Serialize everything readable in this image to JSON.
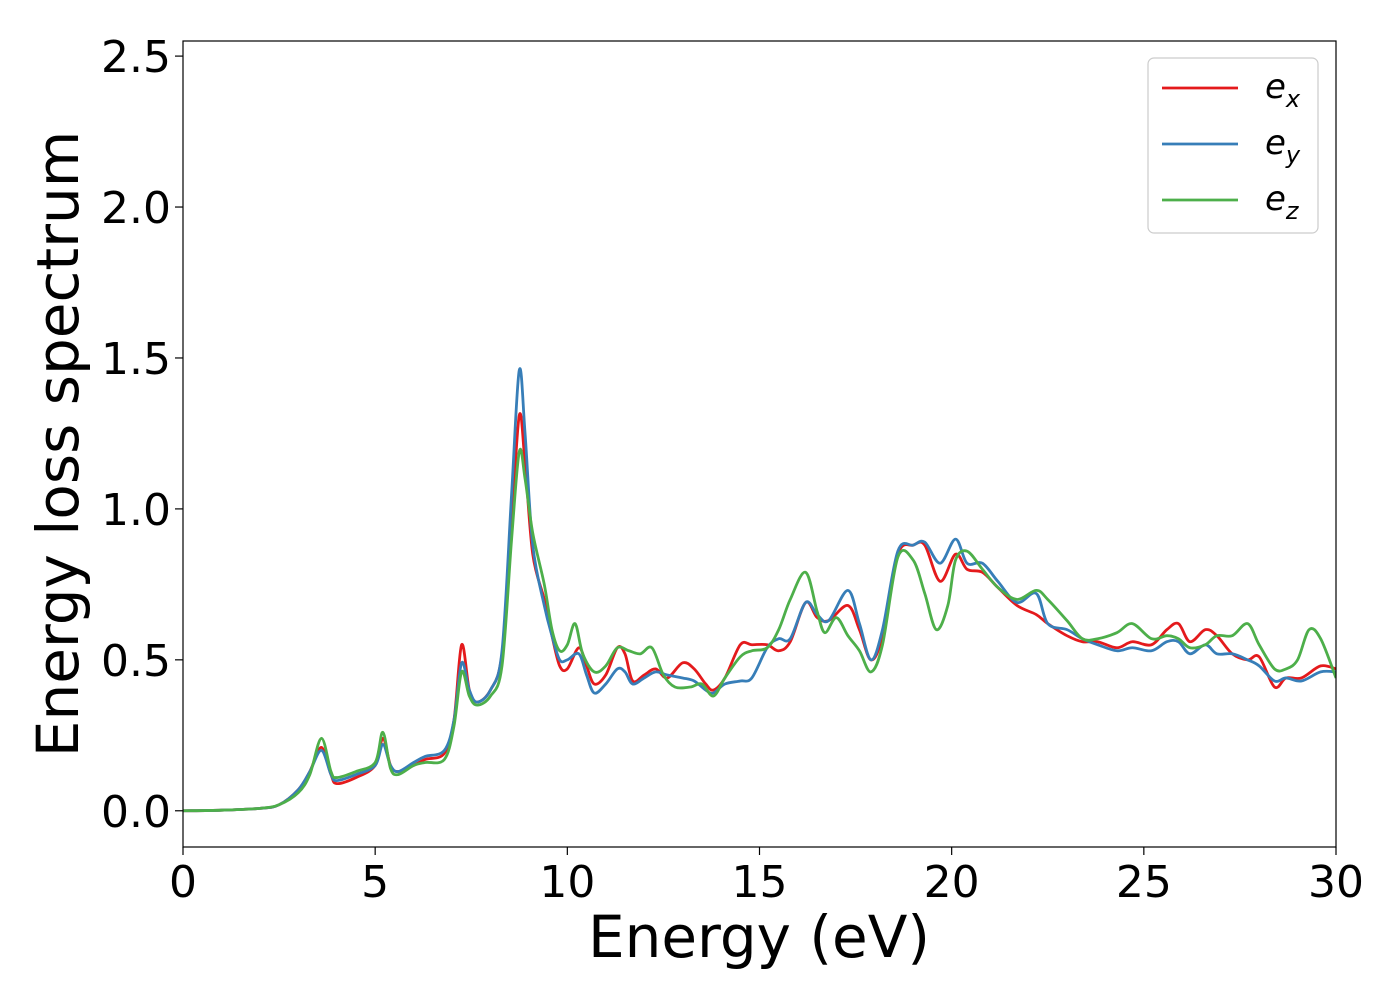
{
  "chart_data": {
    "type": "line",
    "title": "",
    "xlabel": "Energy (eV)",
    "ylabel": "Energy loss spectrum",
    "xlim": [
      0,
      30
    ],
    "ylim": [
      -0.12,
      2.55
    ],
    "xticks": [
      "0",
      "5",
      "10",
      "15",
      "20",
      "25",
      "30"
    ],
    "yticks": [
      "0.0",
      "0.5",
      "1.0",
      "1.5",
      "2.0",
      "2.5"
    ],
    "grid": false,
    "legend_position": "top-right",
    "series": [
      {
        "name": "e",
        "subscript": "x",
        "color": "#e41a1c",
        "points": [
          [
            0,
            0
          ],
          [
            1,
            0.002
          ],
          [
            2,
            0.008
          ],
          [
            2.5,
            0.02
          ],
          [
            3,
            0.07
          ],
          [
            3.3,
            0.13
          ],
          [
            3.6,
            0.21
          ],
          [
            3.85,
            0.12
          ],
          [
            4,
            0.09
          ],
          [
            4.5,
            0.11
          ],
          [
            5,
            0.15
          ],
          [
            5.2,
            0.24
          ],
          [
            5.4,
            0.15
          ],
          [
            5.6,
            0.13
          ],
          [
            6,
            0.15
          ],
          [
            6.3,
            0.17
          ],
          [
            6.8,
            0.19
          ],
          [
            7.05,
            0.3
          ],
          [
            7.25,
            0.55
          ],
          [
            7.45,
            0.4
          ],
          [
            7.65,
            0.36
          ],
          [
            8,
            0.4
          ],
          [
            8.3,
            0.52
          ],
          [
            8.55,
            0.95
          ],
          [
            8.75,
            1.31
          ],
          [
            8.9,
            1.15
          ],
          [
            9.1,
            0.85
          ],
          [
            9.4,
            0.7
          ],
          [
            9.6,
            0.58
          ],
          [
            9.8,
            0.48
          ],
          [
            10,
            0.47
          ],
          [
            10.3,
            0.54
          ],
          [
            10.5,
            0.48
          ],
          [
            10.7,
            0.42
          ],
          [
            11,
            0.45
          ],
          [
            11.3,
            0.54
          ],
          [
            11.5,
            0.52
          ],
          [
            11.7,
            0.43
          ],
          [
            12,
            0.45
          ],
          [
            12.3,
            0.47
          ],
          [
            12.6,
            0.44
          ],
          [
            13,
            0.49
          ],
          [
            13.3,
            0.47
          ],
          [
            13.6,
            0.42
          ],
          [
            13.8,
            0.4
          ],
          [
            14.1,
            0.44
          ],
          [
            14.5,
            0.55
          ],
          [
            14.8,
            0.55
          ],
          [
            15.2,
            0.55
          ],
          [
            15.5,
            0.53
          ],
          [
            15.8,
            0.56
          ],
          [
            16.2,
            0.69
          ],
          [
            16.5,
            0.64
          ],
          [
            16.8,
            0.63
          ],
          [
            17.3,
            0.68
          ],
          [
            17.6,
            0.6
          ],
          [
            17.9,
            0.5
          ],
          [
            18.2,
            0.58
          ],
          [
            18.6,
            0.85
          ],
          [
            19,
            0.88
          ],
          [
            19.3,
            0.88
          ],
          [
            19.7,
            0.76
          ],
          [
            20.1,
            0.85
          ],
          [
            20.4,
            0.8
          ],
          [
            20.8,
            0.79
          ],
          [
            21.2,
            0.74
          ],
          [
            21.7,
            0.68
          ],
          [
            22.2,
            0.65
          ],
          [
            22.5,
            0.62
          ],
          [
            23,
            0.58
          ],
          [
            23.4,
            0.56
          ],
          [
            23.8,
            0.56
          ],
          [
            24.3,
            0.54
          ],
          [
            24.7,
            0.56
          ],
          [
            25.2,
            0.55
          ],
          [
            25.6,
            0.6
          ],
          [
            25.9,
            0.62
          ],
          [
            26.2,
            0.56
          ],
          [
            26.6,
            0.6
          ],
          [
            26.9,
            0.58
          ],
          [
            27.3,
            0.52
          ],
          [
            27.7,
            0.5
          ],
          [
            28,
            0.51
          ],
          [
            28.4,
            0.41
          ],
          [
            28.7,
            0.44
          ],
          [
            29.1,
            0.44
          ],
          [
            29.6,
            0.48
          ],
          [
            30,
            0.47
          ]
        ]
      },
      {
        "name": "e",
        "subscript": "y",
        "color": "#377eb8",
        "points": [
          [
            0,
            0
          ],
          [
            1,
            0.002
          ],
          [
            2,
            0.008
          ],
          [
            2.5,
            0.02
          ],
          [
            3,
            0.07
          ],
          [
            3.3,
            0.13
          ],
          [
            3.6,
            0.2
          ],
          [
            3.85,
            0.12
          ],
          [
            4,
            0.1
          ],
          [
            4.5,
            0.12
          ],
          [
            5,
            0.15
          ],
          [
            5.2,
            0.22
          ],
          [
            5.4,
            0.15
          ],
          [
            5.6,
            0.13
          ],
          [
            6,
            0.16
          ],
          [
            6.3,
            0.18
          ],
          [
            6.8,
            0.2
          ],
          [
            7.05,
            0.3
          ],
          [
            7.25,
            0.49
          ],
          [
            7.45,
            0.4
          ],
          [
            7.65,
            0.36
          ],
          [
            8,
            0.4
          ],
          [
            8.3,
            0.53
          ],
          [
            8.55,
            1.05
          ],
          [
            8.75,
            1.46
          ],
          [
            8.9,
            1.25
          ],
          [
            9.1,
            0.88
          ],
          [
            9.4,
            0.68
          ],
          [
            9.6,
            0.58
          ],
          [
            9.8,
            0.5
          ],
          [
            10,
            0.5
          ],
          [
            10.3,
            0.52
          ],
          [
            10.5,
            0.45
          ],
          [
            10.7,
            0.39
          ],
          [
            11,
            0.42
          ],
          [
            11.3,
            0.47
          ],
          [
            11.5,
            0.46
          ],
          [
            11.7,
            0.42
          ],
          [
            12,
            0.44
          ],
          [
            12.3,
            0.46
          ],
          [
            12.6,
            0.45
          ],
          [
            13,
            0.44
          ],
          [
            13.3,
            0.43
          ],
          [
            13.6,
            0.4
          ],
          [
            13.8,
            0.39
          ],
          [
            14.1,
            0.42
          ],
          [
            14.5,
            0.43
          ],
          [
            14.8,
            0.44
          ],
          [
            15.2,
            0.54
          ],
          [
            15.5,
            0.57
          ],
          [
            15.8,
            0.57
          ],
          [
            16.2,
            0.69
          ],
          [
            16.5,
            0.65
          ],
          [
            16.8,
            0.63
          ],
          [
            17.3,
            0.73
          ],
          [
            17.6,
            0.62
          ],
          [
            17.9,
            0.5
          ],
          [
            18.2,
            0.6
          ],
          [
            18.6,
            0.86
          ],
          [
            19,
            0.88
          ],
          [
            19.3,
            0.89
          ],
          [
            19.7,
            0.82
          ],
          [
            20.1,
            0.9
          ],
          [
            20.4,
            0.82
          ],
          [
            20.8,
            0.82
          ],
          [
            21.2,
            0.76
          ],
          [
            21.7,
            0.69
          ],
          [
            22.2,
            0.72
          ],
          [
            22.5,
            0.62
          ],
          [
            23,
            0.6
          ],
          [
            23.4,
            0.57
          ],
          [
            23.8,
            0.55
          ],
          [
            24.3,
            0.53
          ],
          [
            24.7,
            0.54
          ],
          [
            25.2,
            0.53
          ],
          [
            25.6,
            0.56
          ],
          [
            25.9,
            0.56
          ],
          [
            26.2,
            0.52
          ],
          [
            26.6,
            0.55
          ],
          [
            26.9,
            0.52
          ],
          [
            27.3,
            0.52
          ],
          [
            27.7,
            0.5
          ],
          [
            28,
            0.48
          ],
          [
            28.4,
            0.43
          ],
          [
            28.7,
            0.44
          ],
          [
            29.1,
            0.43
          ],
          [
            29.6,
            0.46
          ],
          [
            30,
            0.46
          ]
        ]
      },
      {
        "name": "e",
        "subscript": "z",
        "color": "#4daf4a",
        "points": [
          [
            0,
            0
          ],
          [
            1,
            0.002
          ],
          [
            2,
            0.008
          ],
          [
            2.5,
            0.02
          ],
          [
            3,
            0.06
          ],
          [
            3.3,
            0.12
          ],
          [
            3.6,
            0.24
          ],
          [
            3.85,
            0.13
          ],
          [
            4,
            0.11
          ],
          [
            4.5,
            0.13
          ],
          [
            5,
            0.16
          ],
          [
            5.2,
            0.26
          ],
          [
            5.4,
            0.14
          ],
          [
            5.6,
            0.12
          ],
          [
            6,
            0.15
          ],
          [
            6.3,
            0.16
          ],
          [
            6.8,
            0.17
          ],
          [
            7.05,
            0.28
          ],
          [
            7.25,
            0.46
          ],
          [
            7.45,
            0.38
          ],
          [
            7.65,
            0.35
          ],
          [
            8,
            0.38
          ],
          [
            8.3,
            0.48
          ],
          [
            8.55,
            0.9
          ],
          [
            8.75,
            1.19
          ],
          [
            8.9,
            1.1
          ],
          [
            9.1,
            0.92
          ],
          [
            9.4,
            0.75
          ],
          [
            9.6,
            0.6
          ],
          [
            9.8,
            0.53
          ],
          [
            10,
            0.55
          ],
          [
            10.2,
            0.62
          ],
          [
            10.4,
            0.52
          ],
          [
            10.7,
            0.46
          ],
          [
            11,
            0.48
          ],
          [
            11.3,
            0.54
          ],
          [
            11.6,
            0.53
          ],
          [
            11.9,
            0.52
          ],
          [
            12.2,
            0.54
          ],
          [
            12.5,
            0.45
          ],
          [
            12.8,
            0.41
          ],
          [
            13.2,
            0.41
          ],
          [
            13.5,
            0.42
          ],
          [
            13.8,
            0.38
          ],
          [
            14.1,
            0.44
          ],
          [
            14.5,
            0.51
          ],
          [
            14.8,
            0.53
          ],
          [
            15.2,
            0.54
          ],
          [
            15.5,
            0.6
          ],
          [
            15.8,
            0.7
          ],
          [
            16.2,
            0.79
          ],
          [
            16.5,
            0.66
          ],
          [
            16.7,
            0.59
          ],
          [
            17,
            0.64
          ],
          [
            17.3,
            0.58
          ],
          [
            17.6,
            0.53
          ],
          [
            17.9,
            0.46
          ],
          [
            18.2,
            0.55
          ],
          [
            18.6,
            0.84
          ],
          [
            19,
            0.83
          ],
          [
            19.3,
            0.72
          ],
          [
            19.6,
            0.6
          ],
          [
            19.9,
            0.68
          ],
          [
            20.1,
            0.83
          ],
          [
            20.4,
            0.86
          ],
          [
            20.8,
            0.8
          ],
          [
            21.2,
            0.74
          ],
          [
            21.7,
            0.7
          ],
          [
            22.2,
            0.73
          ],
          [
            22.5,
            0.7
          ],
          [
            23,
            0.63
          ],
          [
            23.4,
            0.57
          ],
          [
            23.8,
            0.57
          ],
          [
            24.3,
            0.59
          ],
          [
            24.7,
            0.62
          ],
          [
            25.2,
            0.57
          ],
          [
            25.6,
            0.58
          ],
          [
            25.9,
            0.57
          ],
          [
            26.2,
            0.54
          ],
          [
            26.6,
            0.55
          ],
          [
            26.9,
            0.58
          ],
          [
            27.3,
            0.58
          ],
          [
            27.7,
            0.62
          ],
          [
            28,
            0.55
          ],
          [
            28.4,
            0.47
          ],
          [
            28.7,
            0.47
          ],
          [
            29,
            0.5
          ],
          [
            29.3,
            0.6
          ],
          [
            29.6,
            0.57
          ],
          [
            30,
            0.44
          ]
        ]
      }
    ]
  }
}
